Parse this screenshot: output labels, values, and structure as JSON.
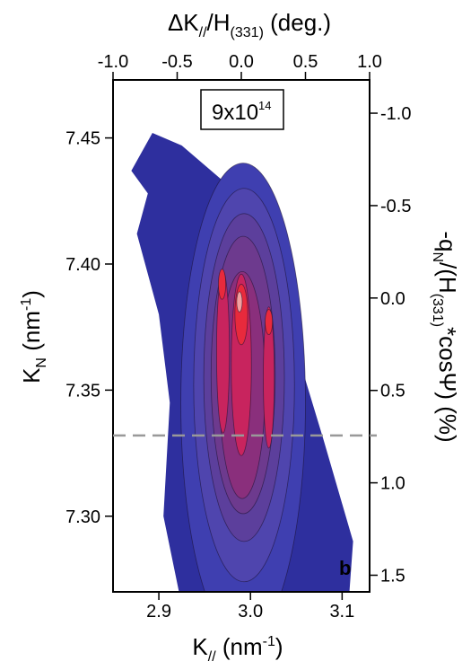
{
  "chart_data": {
    "type": "heatmap",
    "title": "",
    "annotation": "9x10",
    "annotation_exponent": "14",
    "panel_label": "b",
    "x_bottom": {
      "label_main": "K",
      "label_sub": "//",
      "label_unit": " (nm",
      "label_unit_sup": "-1",
      "label_close": ")",
      "range": [
        2.85,
        3.13
      ],
      "ticks": [
        {
          "value": 2.9,
          "label": "2.9"
        },
        {
          "value": 3.0,
          "label": "3.0"
        },
        {
          "value": 3.1,
          "label": "3.1"
        }
      ]
    },
    "x_top": {
      "label_delta": "ΔK",
      "label_delta_sub": "//",
      "label_slash": "/H",
      "label_h_sub": "(331)",
      "label_unit": " (deg.)",
      "range": [
        -1.0,
        1.0
      ],
      "ticks": [
        {
          "value": -1.0,
          "label": "-1.0"
        },
        {
          "value": -0.5,
          "label": "-0.5"
        },
        {
          "value": 0.0,
          "label": "0.0"
        },
        {
          "value": 0.5,
          "label": "0.5"
        },
        {
          "value": 1.0,
          "label": "1.0"
        }
      ]
    },
    "y_left": {
      "label_main": "K",
      "label_sub": "N",
      "label_unit": " (nm",
      "label_unit_sup": "-1",
      "label_close": ")",
      "range": [
        7.27,
        7.473
      ],
      "ticks": [
        {
          "value": 7.3,
          "label": "7.30"
        },
        {
          "value": 7.35,
          "label": "7.35"
        },
        {
          "value": 7.4,
          "label": "7.40"
        },
        {
          "value": 7.45,
          "label": "7.45"
        }
      ]
    },
    "y_right": {
      "label_a": "-q",
      "label_a_sub": "N",
      "label_b": "/(H",
      "label_b_sub": "(331)",
      "label_c": "*cosΨ) (%)",
      "range": [
        1.59,
        -1.18
      ],
      "ticks": [
        {
          "value": -1.0,
          "label": "-1.0"
        },
        {
          "value": -0.5,
          "label": "-0.5"
        },
        {
          "value": 0.0,
          "label": "0.0"
        },
        {
          "value": 0.5,
          "label": "0.5"
        },
        {
          "value": 1.0,
          "label": "1.0"
        },
        {
          "value": 1.5,
          "label": "1.5"
        }
      ]
    },
    "reference_line": {
      "y": 7.332,
      "style": "dashed",
      "color": "#999999"
    },
    "colorscale": [
      "#2e2f9e",
      "#3f3fb0",
      "#4f45ae",
      "#5c3f9c",
      "#6d3a8e",
      "#8a2f7c",
      "#a8286e",
      "#c8245e",
      "#e82a3c",
      "#f4a0a0",
      "#ffffff"
    ],
    "intensity_levels": [
      1,
      2,
      3,
      4,
      5,
      6,
      7,
      8,
      9
    ],
    "grid": false,
    "legend": "none"
  }
}
